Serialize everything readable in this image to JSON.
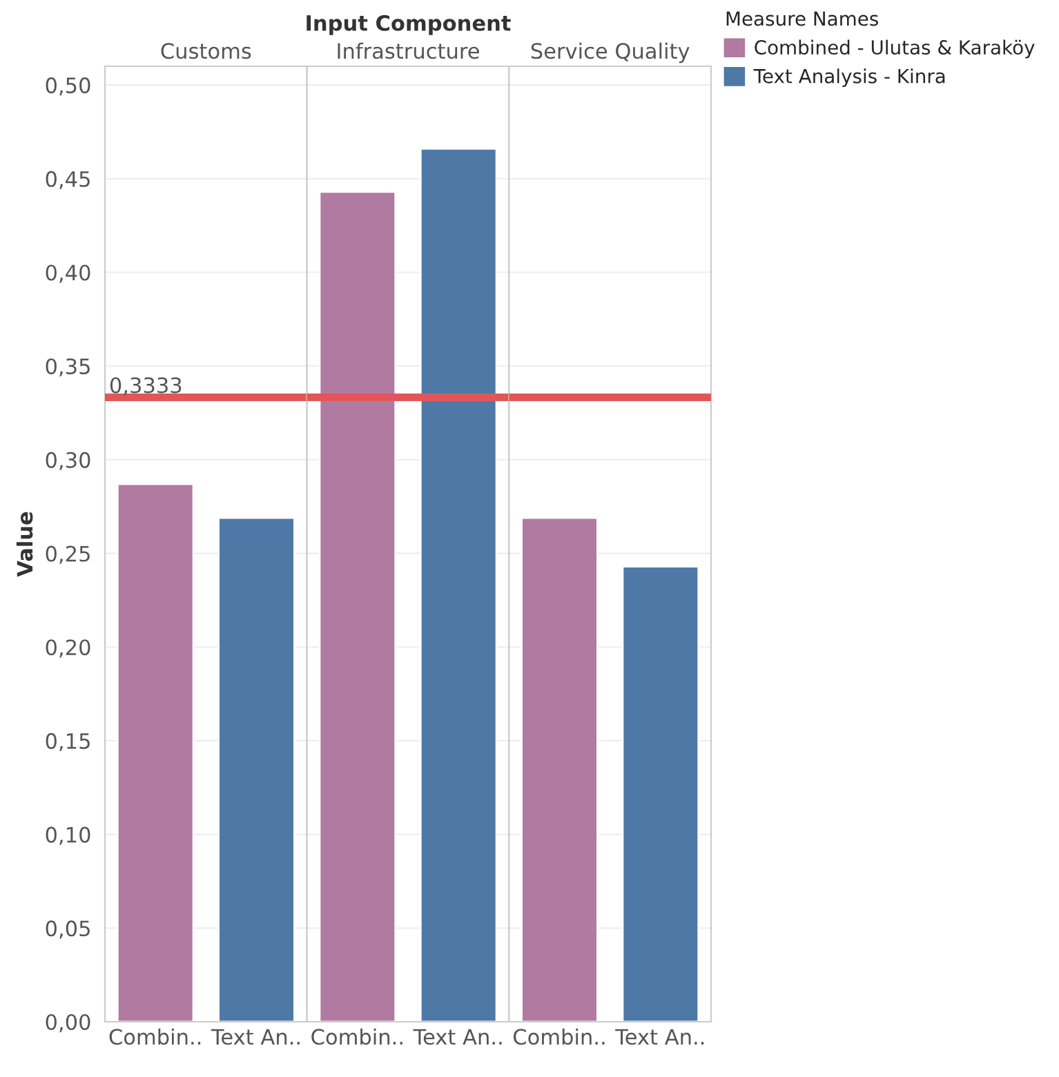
{
  "chart_data": [
    {
      "type": "bar",
      "title": "Customs",
      "ylabel": "Value",
      "categories": [
        "Combin..",
        "Text An.."
      ],
      "series": [
        {
          "color": "#b07aa1",
          "values": [
            0.287,
            null
          ]
        },
        {
          "color": "#4e79a7",
          "values": [
            null,
            0.269
          ]
        }
      ],
      "ylim": [
        0,
        0.51
      ],
      "yticks": [
        {
          "value": 0,
          "label": "0,00"
        },
        {
          "value": 0.05,
          "label": "0,05"
        },
        {
          "value": 0.1,
          "label": "0,10"
        },
        {
          "value": 0.15,
          "label": "0,15"
        },
        {
          "value": 0.2,
          "label": "0,20"
        },
        {
          "value": 0.25,
          "label": "0,25"
        },
        {
          "value": 0.3,
          "label": "0,30"
        },
        {
          "value": 0.35,
          "label": "0,35"
        },
        {
          "value": 0.4,
          "label": "0,40"
        },
        {
          "value": 0.45,
          "label": "0,45"
        },
        {
          "value": 0.5,
          "label": "0,50"
        }
      ],
      "ref_lines": [
        {
          "axis": "y",
          "value": 0.3333,
          "label": "0,3333",
          "color": "#e15759"
        }
      ],
      "grid": "y"
    },
    {
      "type": "bar",
      "title": "Infrastructure",
      "categories": [
        "Combin..",
        "Text An.."
      ],
      "annotations": [
        "Input Component"
      ],
      "series": [
        {
          "color": "#b07aa1",
          "values": [
            0.443,
            null
          ]
        },
        {
          "color": "#4e79a7",
          "values": [
            null,
            0.466
          ]
        }
      ],
      "ylim": [
        0,
        0.51
      ],
      "tick_labels": "x",
      "ref_lines": [
        {
          "axis": "y",
          "value": 0.3333,
          "label": null,
          "color": "#e15759"
        }
      ],
      "grid": "y"
    },
    {
      "type": "bar",
      "title": "Service Quality",
      "categories": [
        "Combin..",
        "Text An.."
      ],
      "series": [
        {
          "name": "Combined - Ulutas & Karaköy",
          "color": "#b07aa1",
          "values": [
            0.269,
            null
          ]
        },
        {
          "name": "Text Analysis - Kinra",
          "color": "#4e79a7",
          "values": [
            null,
            0.243
          ]
        }
      ],
      "ylim": [
        0,
        0.51
      ],
      "tick_labels": "x",
      "ref_lines": [
        {
          "axis": "y",
          "value": 0.3333,
          "label": null,
          "color": "#e15759"
        }
      ],
      "grid": "y",
      "legend": "right",
      "legend_title": "Measure Names"
    }
  ]
}
